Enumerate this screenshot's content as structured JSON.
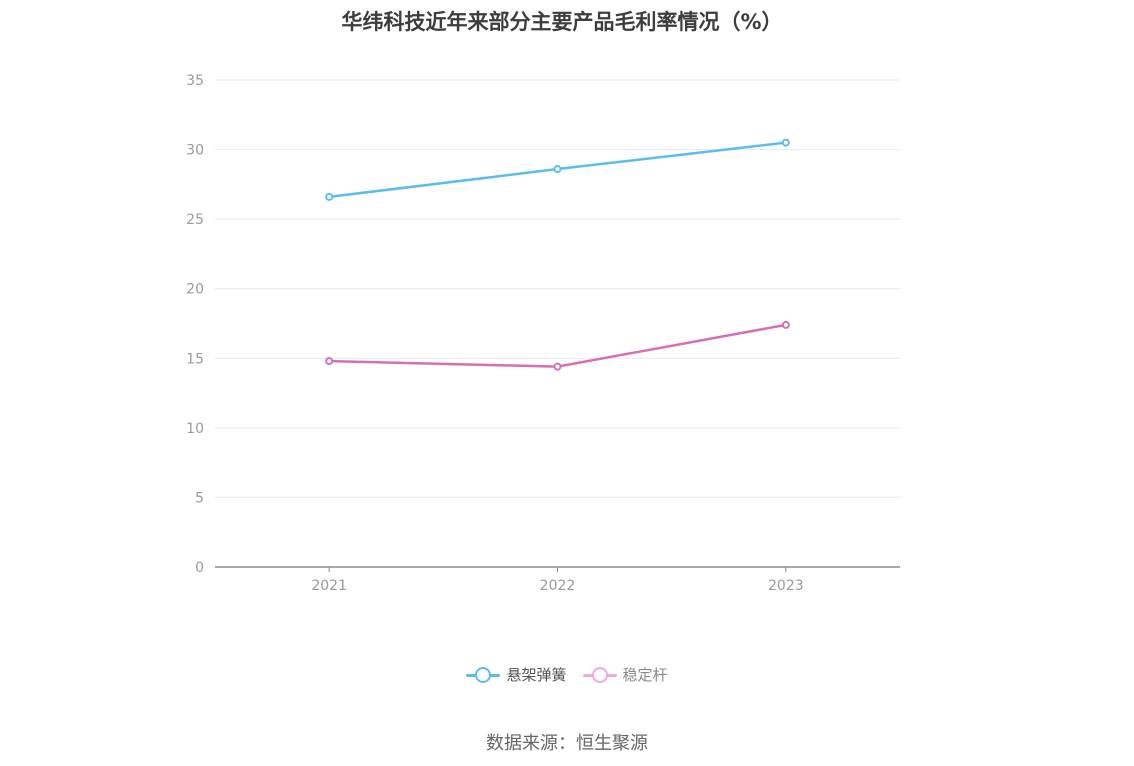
{
  "source_note": "数据来源：恒生聚源",
  "chart_data": {
    "type": "line",
    "title": "华纬科技近年来部分主要产品毛利率情况（%）",
    "xlabel": "",
    "ylabel": "",
    "categories": [
      "2021",
      "2022",
      "2023"
    ],
    "ylim": [
      0,
      35
    ],
    "yticks": [
      "0",
      "5",
      "10",
      "15",
      "20",
      "25",
      "30",
      "35"
    ],
    "grid": true,
    "legend_position": "bottom",
    "series": [
      {
        "name": "悬架弹簧",
        "values": [
          26.6,
          28.6,
          30.5
        ],
        "color": "#5bbcef",
        "legend_dimmed": false
      },
      {
        "name": "稳定杆",
        "values": [
          14.8,
          14.4,
          17.4
        ],
        "color": "#d56fb6",
        "legend_color": "#f0a9d8",
        "legend_dimmed": true
      }
    ]
  }
}
